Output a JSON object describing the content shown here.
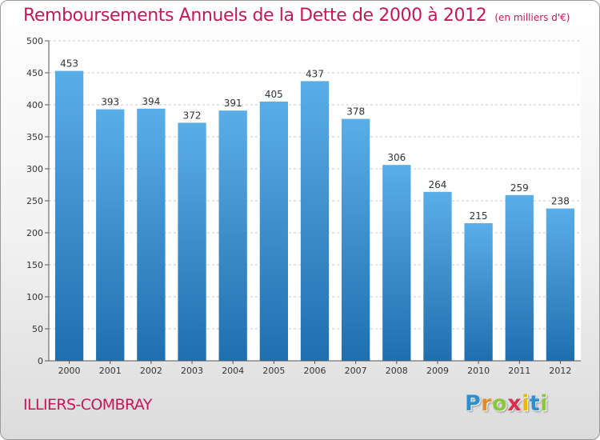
{
  "header": {
    "title": "Remboursements Annuels de la Dette de 2000 à 2012",
    "subtitle": "(en milliers d'€)"
  },
  "footer": {
    "city": "ILLIERS-COMBRAY",
    "logo_letters": [
      "P",
      "r",
      "o",
      "x",
      "i",
      "t",
      "i"
    ],
    "logo_colors": [
      "#2e8fd0",
      "#e5892b",
      "#8cc63f",
      "#d8304d",
      "#f2b705",
      "#2e8fd0",
      "#8cc63f"
    ]
  },
  "colors": {
    "title": "#c2185b",
    "bar_top": "#5aaee8",
    "bar_bottom": "#1f6fae",
    "grid": "#c8c8c8",
    "axis": "#555555",
    "text": "#333333"
  },
  "chart_data": {
    "type": "bar",
    "categories": [
      "2000",
      "2001",
      "2002",
      "2003",
      "2004",
      "2005",
      "2006",
      "2007",
      "2008",
      "2009",
      "2010",
      "2011",
      "2012"
    ],
    "values": [
      453,
      393,
      394,
      372,
      391,
      405,
      437,
      378,
      306,
      264,
      215,
      259,
      238
    ],
    "ylim": [
      0,
      500
    ],
    "yticks": [
      0,
      50,
      100,
      150,
      200,
      250,
      300,
      350,
      400,
      450,
      500
    ],
    "grid": true,
    "data_labels": true
  }
}
